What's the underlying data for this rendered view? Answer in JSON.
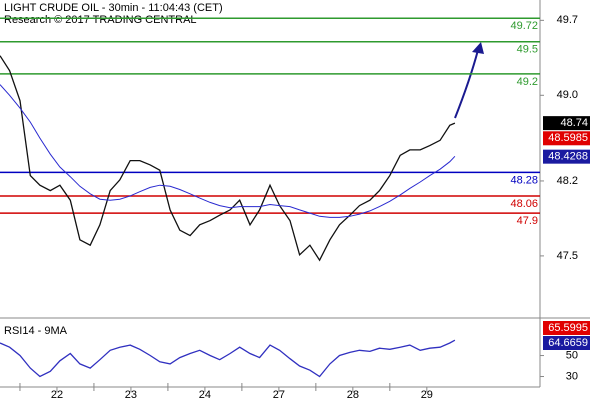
{
  "chart_data": [
    {
      "type": "line",
      "title": "LIGHT CRUDE OIL - 30min - 11:04:43 (CET)",
      "subtitle": "Research © 2017 TRADING CENTRAL",
      "x": [
        -0.77,
        -0.64,
        -0.5,
        -0.36,
        -0.23,
        -0.09,
        0.04,
        0.18,
        0.31,
        0.45,
        0.58,
        0.72,
        0.85,
        0.99,
        1.12,
        1.26,
        1.39,
        1.53,
        1.66,
        1.8,
        1.93,
        2.07,
        2.2,
        2.34,
        2.47,
        2.61,
        2.74,
        2.88,
        3.01,
        3.15,
        3.28,
        3.42,
        3.55,
        3.69,
        3.82,
        3.96,
        4.09,
        4.23,
        4.36,
        4.5,
        4.64,
        4.77,
        4.91,
        5.04,
        5.18,
        5.31,
        5.38
      ],
      "xlim": [
        -0.77,
        6.53
      ],
      "xticks": [
        {
          "value": 0,
          "label": "22"
        },
        {
          "value": 1,
          "label": "23"
        },
        {
          "value": 2,
          "label": "24"
        },
        {
          "value": 3,
          "label": "27"
        },
        {
          "value": 4,
          "label": "28"
        },
        {
          "value": 5,
          "label": "29"
        }
      ],
      "ylim": [
        46.92,
        49.89
      ],
      "yticks": [
        49.7,
        {
          "value": 49.0,
          "label": "49.0"
        },
        48.2,
        47.5
      ],
      "series": [
        {
          "color": "#111111",
          "values": [
            49.37,
            49.23,
            48.95,
            48.25,
            48.16,
            48.11,
            48.16,
            48.02,
            47.65,
            47.6,
            47.79,
            48.11,
            48.21,
            48.39,
            48.39,
            48.35,
            48.3,
            47.93,
            47.74,
            47.69,
            47.79,
            47.83,
            47.88,
            47.93,
            48.02,
            47.79,
            47.93,
            48.16,
            47.97,
            47.83,
            47.51,
            47.6,
            47.46,
            47.65,
            47.79,
            47.88,
            47.97,
            48.02,
            48.11,
            48.25,
            48.44,
            48.49,
            48.49,
            48.53,
            48.58,
            48.72,
            48.74
          ]
        },
        {
          "color": "#2a2ad0",
          "values": [
            49.1,
            49.0,
            48.88,
            48.75,
            48.6,
            48.45,
            48.33,
            48.24,
            48.15,
            48.08,
            48.03,
            48.02,
            48.03,
            48.06,
            48.1,
            48.14,
            48.16,
            48.15,
            48.12,
            48.08,
            48.04,
            48.0,
            47.97,
            47.95,
            47.96,
            47.96,
            47.96,
            47.98,
            47.97,
            47.96,
            47.93,
            47.9,
            47.87,
            47.86,
            47.86,
            47.87,
            47.89,
            47.92,
            47.96,
            48.01,
            48.07,
            48.13,
            48.19,
            48.25,
            48.31,
            48.38,
            48.43
          ]
        }
      ],
      "levels": [
        {
          "value": 49.72,
          "color": "#2e9a2e"
        },
        {
          "value": 49.5,
          "color": "#2e9a2e"
        },
        {
          "value": 49.2,
          "color": "#2e9a2e"
        },
        {
          "value": 48.28,
          "color": "#0000c0"
        },
        {
          "value": 48.06,
          "color": "#d00000"
        },
        {
          "value": 47.9,
          "color": "#d00000"
        }
      ],
      "price_labels": [
        {
          "value": 48.74,
          "color": "#000000"
        },
        {
          "value": 48.5985,
          "color": "#e00000"
        },
        {
          "value": 48.4268,
          "color": "#1a1aa0"
        }
      ]
    },
    {
      "type": "line",
      "title": "RSI14 - 9MA",
      "x": [
        -0.77,
        -0.64,
        -0.5,
        -0.36,
        -0.23,
        -0.09,
        0.04,
        0.18,
        0.31,
        0.45,
        0.58,
        0.72,
        0.85,
        0.99,
        1.12,
        1.26,
        1.39,
        1.53,
        1.66,
        1.8,
        1.93,
        2.07,
        2.2,
        2.34,
        2.47,
        2.61,
        2.74,
        2.88,
        3.01,
        3.15,
        3.28,
        3.42,
        3.55,
        3.69,
        3.82,
        3.96,
        4.09,
        4.23,
        4.36,
        4.5,
        4.64,
        4.77,
        4.91,
        5.04,
        5.18,
        5.31,
        5.38
      ],
      "xlim": [
        -0.77,
        6.53
      ],
      "ylim": [
        20,
        82
      ],
      "yticks": [
        50,
        30
      ],
      "series": [
        {
          "color": "#3030c0",
          "values": [
            62,
            58,
            50,
            38,
            30,
            35,
            45,
            52,
            42,
            38,
            46,
            55,
            58,
            60,
            56,
            50,
            44,
            42,
            48,
            52,
            55,
            50,
            46,
            52,
            58,
            52,
            48,
            60,
            55,
            47,
            40,
            36,
            30,
            42,
            50,
            53,
            55,
            54,
            57,
            56,
            58,
            60,
            55,
            57,
            58,
            62,
            64.67
          ]
        }
      ],
      "price_labels": [
        {
          "value": 65.5995,
          "color": "#e00000"
        },
        {
          "value": 64.6659,
          "color": "#1a1aa0"
        }
      ]
    }
  ]
}
